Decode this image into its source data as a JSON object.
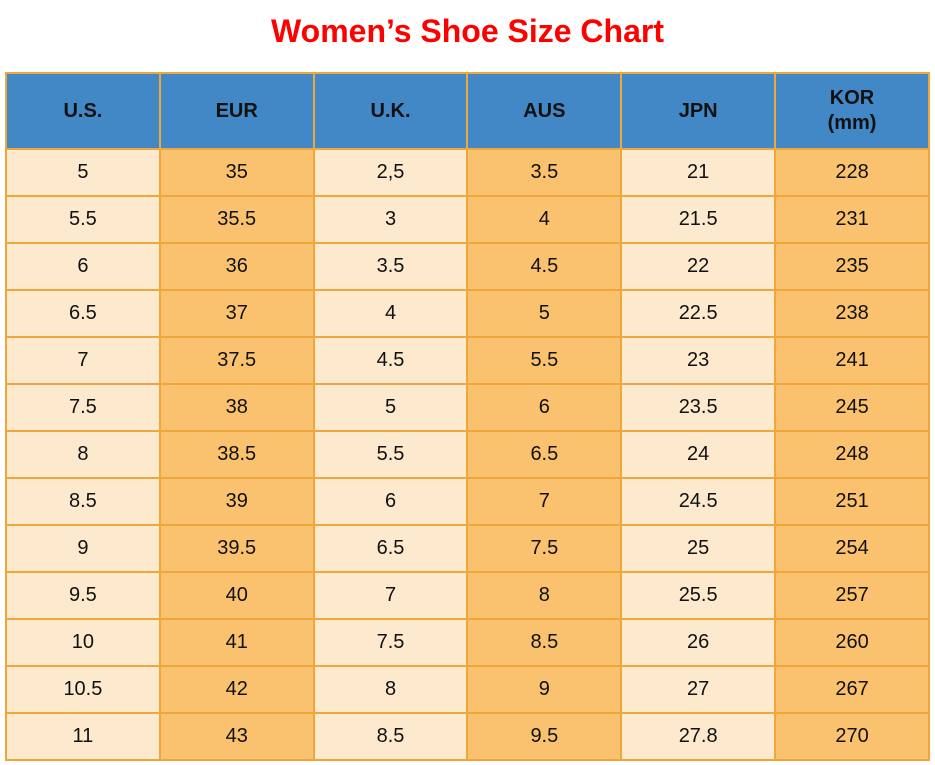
{
  "title": "Women’s Shoe Size Chart",
  "colors": {
    "title-red": "#FF0000",
    "header-blue": "#4287C6",
    "border-orange": "#EFA73C",
    "cream": "#FDE9CD",
    "orange": "#FAC26E",
    "text-black": "#111111",
    "page-bg": "#FFFFFF"
  },
  "table": {
    "headers": [
      {
        "label": "U.S."
      },
      {
        "label": "EUR"
      },
      {
        "label": "U.K."
      },
      {
        "label": "AUS"
      },
      {
        "label": "JPN"
      },
      {
        "label": "KOR",
        "sub": "(mm)"
      }
    ],
    "rows": [
      [
        "5",
        "35",
        "2,5",
        "3.5",
        "21",
        "228"
      ],
      [
        "5.5",
        "35.5",
        "3",
        "4",
        "21.5",
        "231"
      ],
      [
        "6",
        "36",
        "3.5",
        "4.5",
        "22",
        "235"
      ],
      [
        "6.5",
        "37",
        "4",
        "5",
        "22.5",
        "238"
      ],
      [
        "7",
        "37.5",
        "4.5",
        "5.5",
        "23",
        "241"
      ],
      [
        "7.5",
        "38",
        "5",
        "6",
        "23.5",
        "245"
      ],
      [
        "8",
        "38.5",
        "5.5",
        "6.5",
        "24",
        "248"
      ],
      [
        "8.5",
        "39",
        "6",
        "7",
        "24.5",
        "251"
      ],
      [
        "9",
        "39.5",
        "6.5",
        "7.5",
        "25",
        "254"
      ],
      [
        "9.5",
        "40",
        "7",
        "8",
        "25.5",
        "257"
      ],
      [
        "10",
        "41",
        "7.5",
        "8.5",
        "26",
        "260"
      ],
      [
        "10.5",
        "42",
        "8",
        "9",
        "27",
        "267"
      ],
      [
        "11",
        "43",
        "8.5",
        "9.5",
        "27.8",
        "270"
      ]
    ]
  },
  "chart_data": {
    "type": "table",
    "title": "Women’s Shoe Size Chart",
    "columns": [
      "U.S.",
      "EUR",
      "U.K.",
      "AUS",
      "JPN",
      "KOR (mm)"
    ],
    "rows": [
      [
        "5",
        "35",
        "2,5",
        "3.5",
        "21",
        "228"
      ],
      [
        "5.5",
        "35.5",
        "3",
        "4",
        "21.5",
        "231"
      ],
      [
        "6",
        "36",
        "3.5",
        "4.5",
        "22",
        "235"
      ],
      [
        "6.5",
        "37",
        "4",
        "5",
        "22.5",
        "238"
      ],
      [
        "7",
        "37.5",
        "4.5",
        "5.5",
        "23",
        "241"
      ],
      [
        "7.5",
        "38",
        "5",
        "6",
        "23.5",
        "245"
      ],
      [
        "8",
        "38.5",
        "5.5",
        "6.5",
        "24",
        "248"
      ],
      [
        "8.5",
        "39",
        "6",
        "7",
        "24.5",
        "251"
      ],
      [
        "9",
        "39.5",
        "6.5",
        "7.5",
        "25",
        "254"
      ],
      [
        "9.5",
        "40",
        "7",
        "8",
        "25.5",
        "257"
      ],
      [
        "10",
        "41",
        "7.5",
        "8.5",
        "26",
        "260"
      ],
      [
        "10.5",
        "42",
        "8",
        "9",
        "27",
        "267"
      ],
      [
        "11",
        "43",
        "8.5",
        "9.5",
        "27.8",
        "270"
      ]
    ],
    "layout": {
      "header_bg": "#4287C6",
      "column_fill_alternating": [
        "#FDE9CD",
        "#FAC26E"
      ],
      "grid": true
    }
  }
}
